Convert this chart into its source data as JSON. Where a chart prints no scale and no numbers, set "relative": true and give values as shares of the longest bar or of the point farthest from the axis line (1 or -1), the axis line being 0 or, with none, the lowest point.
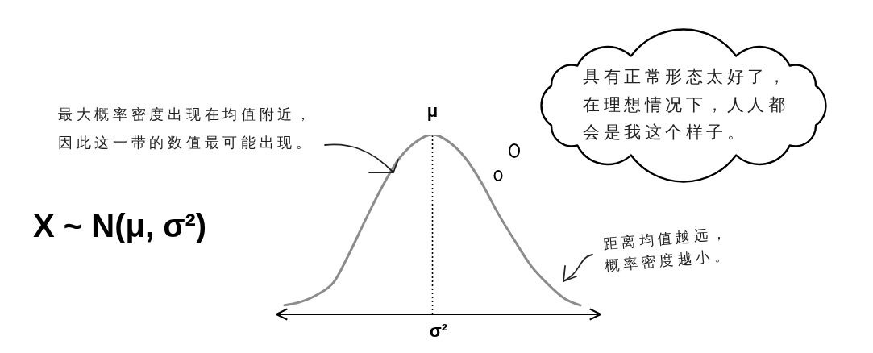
{
  "chart_data": {
    "type": "line",
    "title": "X ~ N(μ, σ²)",
    "xlabel": "σ²",
    "categories": [
      null,
      null,
      null,
      null,
      null,
      null,
      null,
      null,
      null,
      null,
      null,
      null,
      null,
      null,
      null,
      null,
      null,
      null,
      null
    ],
    "relative": true,
    "series": [
      {
        "color": "#8c8c8c",
        "values": [
          0.05,
          0.07,
          0.11,
          0.18,
          0.35,
          0.54,
          0.72,
          0.87,
          0.96,
          1.0,
          0.96,
          0.87,
          0.73,
          0.56,
          0.41,
          0.27,
          0.17,
          0.09,
          0.05
        ]
      }
    ],
    "annotations": [
      "最大概率密度出现在均值附近，因此这一带的数值最可能出现。",
      "μ",
      "具有正常形态太好了，在理想情况下，人人都会是我这个样子。",
      "距离均值越远，概率密度越小。"
    ],
    "marker": "none",
    "line_style": "solid",
    "grid": false,
    "legend": false
  }
}
